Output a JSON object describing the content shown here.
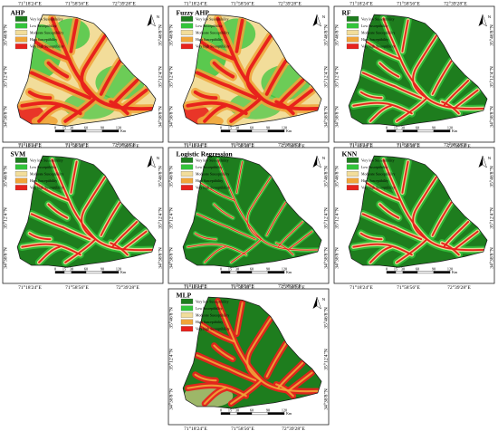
{
  "legend_colors": [
    "#1e7d1e",
    "#33c43b",
    "#f2dd9a",
    "#f0a53a",
    "#e8221c"
  ],
  "legend_labels": [
    "Very low Susceptibility",
    "Low Susceptibility",
    "Moderate  Susceptibility",
    "High Susceptibility",
    "Very high Susceptibility"
  ],
  "longitudes": [
    "71°18'24\"E",
    "71°58'56\"E",
    "72°39'28\"E"
  ],
  "latitudes": [
    "35°46'8\"N",
    "35°12'4\"N",
    "34°38'8\"N"
  ],
  "scale_ticks": [
    "0",
    "15",
    "30",
    "60",
    "90",
    "120"
  ],
  "scale_unit": "Km",
  "north_symbol": "N",
  "panels": [
    {
      "title": "AHP",
      "pattern": "ahp"
    },
    {
      "title": "Fuzzy AHP",
      "pattern": "ahp"
    },
    {
      "title": "RF",
      "pattern": "ml"
    },
    {
      "title": "SVM",
      "pattern": "ml"
    },
    {
      "title": "Logistic Regression",
      "pattern": "lr"
    },
    {
      "title": "KNN",
      "pattern": "ml"
    },
    {
      "title": "MLP",
      "pattern": "mlp"
    }
  ]
}
